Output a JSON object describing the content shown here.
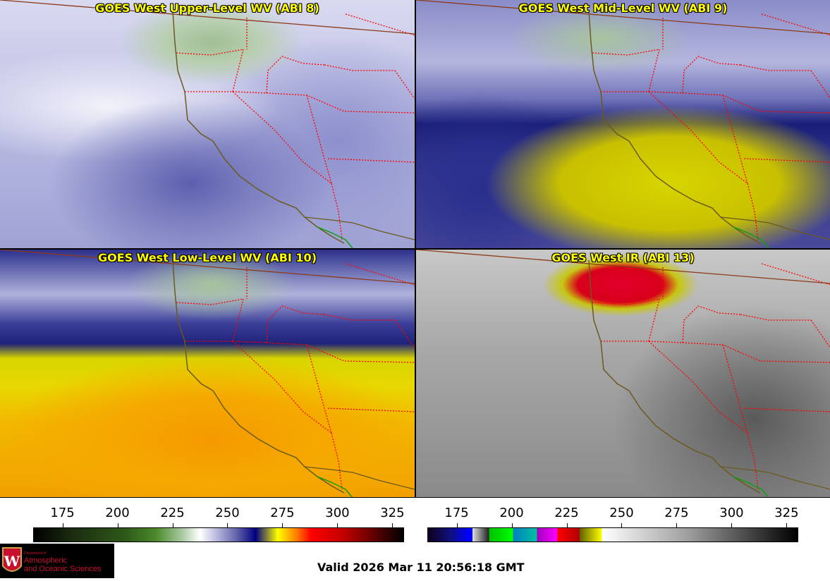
{
  "panels": [
    {
      "title": "GOES West Upper-Level WV (ABI 8)"
    },
    {
      "title": "GOES West Mid-Level WV (ABI 9)"
    },
    {
      "title": "GOES West Low-Level WV (ABI 10)"
    },
    {
      "title": "GOES West IR (ABI 13)"
    }
  ],
  "colorbars": [
    {
      "name": "water-vapor",
      "range": [
        162,
        330
      ],
      "ticks": [
        "175",
        "200",
        "225",
        "250",
        "275",
        "300",
        "325"
      ],
      "tick_values": [
        175,
        200,
        225,
        250,
        275,
        300,
        325
      ]
    },
    {
      "name": "infrared",
      "range": [
        162,
        330
      ],
      "ticks": [
        "175",
        "200",
        "225",
        "250",
        "275",
        "300",
        "325"
      ],
      "tick_values": [
        175,
        200,
        225,
        250,
        275,
        300,
        325
      ]
    }
  ],
  "logo": {
    "line1": "Department of",
    "line2": "Atmospheric",
    "line3": "and Oceanic Sciences",
    "crest": "W"
  },
  "valid_time": "Valid 2026 Mar 11 20:56:18 GMT",
  "colors": {
    "title": "#ffff00",
    "state_border": "#ff0000",
    "coast": "#6b5a1e",
    "logo_text": "#c8102e"
  }
}
